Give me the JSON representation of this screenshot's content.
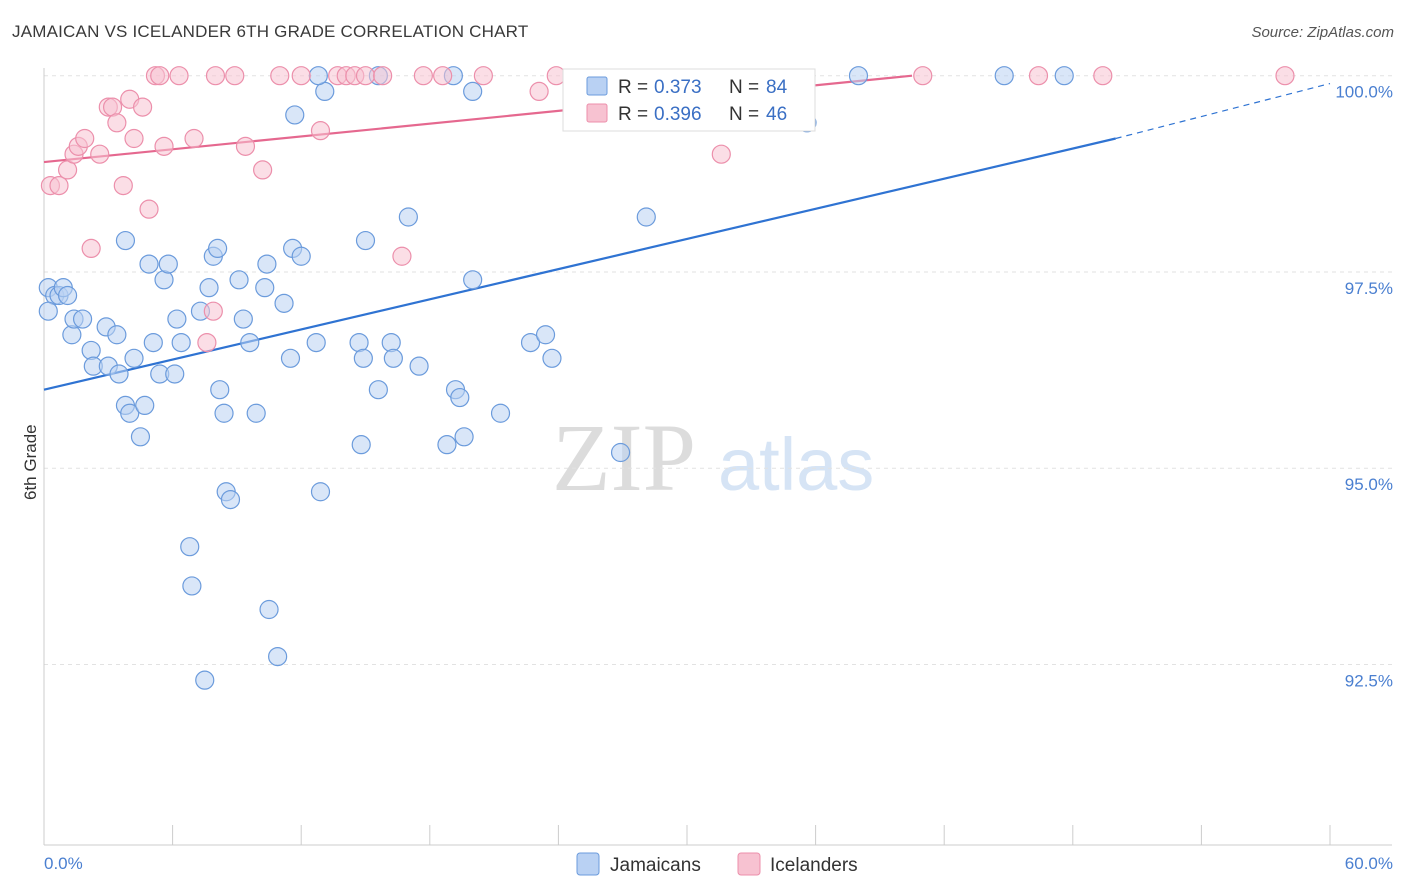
{
  "title": "JAMAICAN VS ICELANDER 6TH GRADE CORRELATION CHART",
  "source": "Source: ZipAtlas.com",
  "watermark": {
    "zip": "ZIP",
    "atlas": "atlas"
  },
  "colors": {
    "jamaicans_fill": "#b9d1f3",
    "jamaicans_stroke": "#6b9bdc",
    "jamaicans_line": "#2f73d2",
    "icelanders_fill": "#f7c2d1",
    "icelanders_stroke": "#ec8fab",
    "icelanders_line": "#e5688f",
    "tick_label": "#4a7fd0"
  },
  "legend": {
    "rows": [
      {
        "r_label": "R =",
        "r_value": "0.373",
        "n_label": "N =",
        "n_value": "84"
      },
      {
        "r_label": "R =",
        "r_value": "0.396",
        "n_label": "N =",
        "n_value": "46"
      }
    ]
  },
  "chart_data": {
    "type": "scatter",
    "title": "JAMAICAN VS ICELANDER 6TH GRADE CORRELATION CHART",
    "xlabel": "",
    "ylabel": "6th Grade",
    "xlim": [
      0,
      60
    ],
    "ylim": [
      90.2,
      100.2
    ],
    "x_tick_labels": [
      "0.0%",
      "60.0%"
    ],
    "y_ticks": [
      92.5,
      95.0,
      97.5,
      100.0
    ],
    "y_tick_labels": [
      "92.5%",
      "95.0%",
      "97.5%",
      "100.0%"
    ],
    "grid": true,
    "legend_position": "top-center",
    "series": [
      {
        "name": "Jamaicans",
        "r": 0.373,
        "n": 84,
        "trend": {
          "x0": 0,
          "y0": 96.0,
          "x1": 50,
          "y1": 99.2,
          "dashed_to_x": 60,
          "dashed_to_y": 99.9
        },
        "points": [
          [
            0.2,
            97.3
          ],
          [
            0.5,
            97.2
          ],
          [
            0.7,
            97.2
          ],
          [
            0.9,
            97.3
          ],
          [
            1.1,
            97.2
          ],
          [
            0.2,
            97.0
          ],
          [
            1.3,
            96.7
          ],
          [
            1.4,
            96.9
          ],
          [
            1.8,
            96.9
          ],
          [
            2.2,
            96.5
          ],
          [
            2.3,
            96.3
          ],
          [
            2.9,
            96.8
          ],
          [
            3.0,
            96.3
          ],
          [
            3.4,
            96.7
          ],
          [
            3.5,
            96.2
          ],
          [
            3.8,
            95.8
          ],
          [
            4.0,
            95.7
          ],
          [
            4.2,
            96.4
          ],
          [
            4.5,
            95.4
          ],
          [
            4.7,
            95.8
          ],
          [
            4.9,
            97.6
          ],
          [
            5.1,
            96.6
          ],
          [
            5.4,
            96.2
          ],
          [
            5.6,
            97.4
          ],
          [
            5.8,
            97.6
          ],
          [
            6.1,
            96.2
          ],
          [
            6.2,
            96.9
          ],
          [
            6.4,
            96.6
          ],
          [
            6.8,
            94.0
          ],
          [
            6.9,
            93.5
          ],
          [
            7.3,
            97.0
          ],
          [
            7.5,
            92.3
          ],
          [
            7.7,
            97.3
          ],
          [
            7.9,
            97.7
          ],
          [
            8.2,
            96.0
          ],
          [
            8.4,
            95.7
          ],
          [
            8.5,
            94.7
          ],
          [
            8.7,
            94.6
          ],
          [
            9.1,
            97.4
          ],
          [
            9.3,
            96.9
          ],
          [
            9.6,
            96.6
          ],
          [
            9.9,
            95.7
          ],
          [
            10.3,
            97.3
          ],
          [
            10.4,
            97.6
          ],
          [
            10.5,
            93.2
          ],
          [
            10.9,
            92.6
          ],
          [
            11.2,
            97.1
          ],
          [
            11.5,
            96.4
          ],
          [
            11.6,
            97.8
          ],
          [
            12.0,
            97.7
          ],
          [
            11.7,
            99.5
          ],
          [
            12.7,
            96.6
          ],
          [
            12.9,
            94.7
          ],
          [
            13.1,
            99.8
          ],
          [
            14.7,
            96.6
          ],
          [
            14.8,
            95.3
          ],
          [
            14.9,
            96.4
          ],
          [
            15.0,
            97.9
          ],
          [
            15.6,
            96.0
          ],
          [
            16.2,
            96.6
          ],
          [
            16.3,
            96.4
          ],
          [
            17.0,
            98.2
          ],
          [
            17.5,
            96.3
          ],
          [
            18.8,
            95.3
          ],
          [
            19.2,
            96.0
          ],
          [
            19.4,
            95.9
          ],
          [
            19.6,
            95.4
          ],
          [
            20.0,
            97.4
          ],
          [
            21.3,
            95.7
          ],
          [
            22.7,
            96.6
          ],
          [
            23.4,
            96.7
          ],
          [
            23.7,
            96.4
          ],
          [
            26.9,
            95.2
          ],
          [
            28.1,
            98.2
          ],
          [
            12.8,
            100.0
          ],
          [
            15.6,
            100.0
          ],
          [
            19.1,
            100.0
          ],
          [
            38.0,
            100.0
          ],
          [
            20.0,
            99.8
          ],
          [
            35.6,
            99.4
          ],
          [
            44.8,
            100.0
          ],
          [
            47.6,
            100.0
          ],
          [
            3.8,
            97.9
          ],
          [
            8.1,
            97.8
          ]
        ]
      },
      {
        "name": "Icelanders",
        "r": 0.396,
        "n": 46,
        "trend": {
          "x0": 0,
          "y0": 98.9,
          "x1": 40.5,
          "y1": 100.0
        },
        "points": [
          [
            0.3,
            98.6
          ],
          [
            0.7,
            98.6
          ],
          [
            1.1,
            98.8
          ],
          [
            1.4,
            99.0
          ],
          [
            1.6,
            99.1
          ],
          [
            1.9,
            99.2
          ],
          [
            2.2,
            97.8
          ],
          [
            2.6,
            99.0
          ],
          [
            3.0,
            99.6
          ],
          [
            3.2,
            99.6
          ],
          [
            3.4,
            99.4
          ],
          [
            3.7,
            98.6
          ],
          [
            4.0,
            99.7
          ],
          [
            4.2,
            99.2
          ],
          [
            4.6,
            99.6
          ],
          [
            4.9,
            98.3
          ],
          [
            5.2,
            100.0
          ],
          [
            5.4,
            100.0
          ],
          [
            5.6,
            99.1
          ],
          [
            6.3,
            100.0
          ],
          [
            7.0,
            99.2
          ],
          [
            7.9,
            97.0
          ],
          [
            8.0,
            100.0
          ],
          [
            8.9,
            100.0
          ],
          [
            9.4,
            99.1
          ],
          [
            10.2,
            98.8
          ],
          [
            11.0,
            100.0
          ],
          [
            12.0,
            100.0
          ],
          [
            12.9,
            99.3
          ],
          [
            13.7,
            100.0
          ],
          [
            14.1,
            100.0
          ],
          [
            14.5,
            100.0
          ],
          [
            15.0,
            100.0
          ],
          [
            15.8,
            100.0
          ],
          [
            16.7,
            97.7
          ],
          [
            17.7,
            100.0
          ],
          [
            18.6,
            100.0
          ],
          [
            20.5,
            100.0
          ],
          [
            23.1,
            99.8
          ],
          [
            23.9,
            100.0
          ],
          [
            31.6,
            99.0
          ],
          [
            41.0,
            100.0
          ],
          [
            46.4,
            100.0
          ],
          [
            49.4,
            100.0
          ],
          [
            57.9,
            100.0
          ],
          [
            7.6,
            96.6
          ]
        ]
      }
    ]
  },
  "bottom_legend": {
    "items": [
      {
        "label": "Jamaicans"
      },
      {
        "label": "Icelanders"
      }
    ]
  }
}
